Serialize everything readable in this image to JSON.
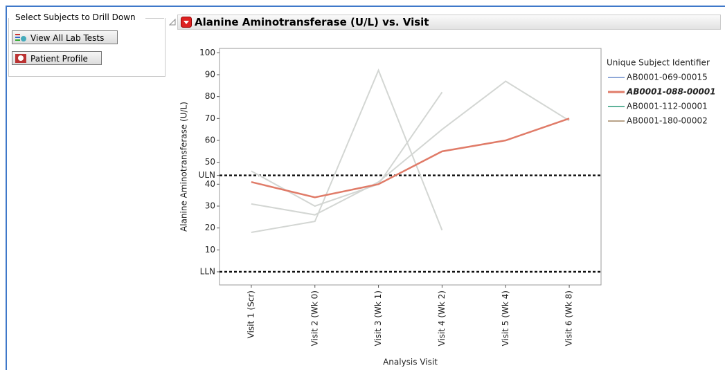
{
  "panel": {
    "title": "Select Subjects to Drill Down",
    "buttons": [
      "View All Lab Tests",
      "Patient Profile"
    ]
  },
  "chart_data": {
    "type": "line",
    "title": "Alanine Aminotransferase (U/L) vs. Visit",
    "x_label": "Analysis Visit",
    "y_label": "Alanine Aminotransferase (U/L)",
    "categories": [
      "Visit 1 (Scr)",
      "Visit 2 (Wk 0)",
      "Visit 3 (Wk 1)",
      "Visit 4 (Wk 2)",
      "Visit 5 (Wk 4)",
      "Visit 6 (Wk 8)"
    ],
    "legend_title": "Unique Subject Identifier",
    "unselected_color": "#d3d6d3",
    "series": [
      {
        "name": "AB0001-069-00015",
        "color": "#8fa8d8",
        "selected": false,
        "values": [
          46,
          30,
          40,
          82,
          null,
          null
        ]
      },
      {
        "name": "AB0001-088-00001",
        "color": "#e07b68",
        "selected": true,
        "values": [
          41,
          34,
          40,
          55,
          60,
          70
        ]
      },
      {
        "name": "AB0001-112-00001",
        "color": "#5fb39a",
        "selected": false,
        "values": [
          18,
          23,
          92,
          19,
          null,
          null
        ]
      },
      {
        "name": "AB0001-180-00002",
        "color": "#b8a288",
        "selected": false,
        "values": [
          31,
          26,
          41,
          65,
          87,
          69
        ]
      }
    ],
    "ylim": [
      -6,
      102
    ],
    "yticks": [
      {
        "value": 0,
        "label": "LLN"
      },
      10,
      20,
      30,
      40,
      {
        "value": 44,
        "label": "ULN"
      },
      50,
      60,
      70,
      80,
      90,
      100
    ]
  }
}
